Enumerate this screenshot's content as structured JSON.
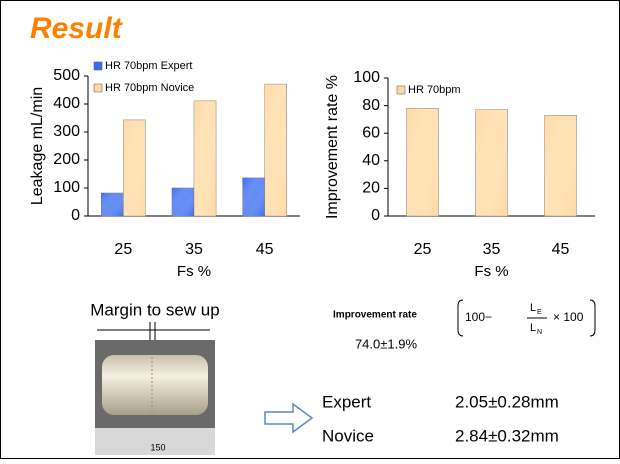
{
  "title": "Result",
  "chart_data": [
    {
      "type": "bar",
      "categories": [
        "25",
        "35",
        "45"
      ],
      "series": [
        {
          "name": "HR 70bpm Expert",
          "color": "#3a6cf0",
          "values": [
            82,
            100,
            136
          ]
        },
        {
          "name": "HR 70bpm Novice",
          "color": "#ffd9a0",
          "values": [
            343,
            411,
            471
          ]
        }
      ],
      "ylim": [
        0,
        500
      ],
      "yticks": [
        0,
        100,
        200,
        300,
        400,
        500
      ],
      "y_label": "Leakage mL/min",
      "x_label": "Fs %",
      "legend": "top-left"
    },
    {
      "type": "bar",
      "categories": [
        "25",
        "35",
        "45"
      ],
      "series": [
        {
          "name": "HR 70bpm",
          "color": "#ffd9a0",
          "values": [
            78,
            77,
            73
          ]
        }
      ],
      "ylim": [
        0,
        100
      ],
      "yticks": [
        0,
        20,
        40,
        60,
        80,
        100
      ],
      "y_label": "Improvement rate %",
      "x_label": "Fs %",
      "legend": "top-left"
    }
  ],
  "margin_caption": "Margin to sew up",
  "photo_ruler_label": "150",
  "improvement": {
    "label": "Improvement rate",
    "value": "74.0±1.9%",
    "formula": {
      "lead": "100−",
      "numerator": "L",
      "numerator_sub": "E",
      "denominator": "L",
      "denominator_sub": "N",
      "tail": "× 100"
    }
  },
  "results": [
    {
      "group": "Expert",
      "value": "2.05±0.28mm"
    },
    {
      "group": "Novice",
      "value": "2.84±0.32mm"
    }
  ]
}
